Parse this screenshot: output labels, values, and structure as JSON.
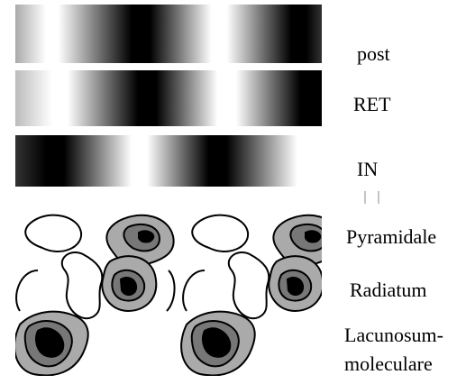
{
  "labels": {
    "post": "post",
    "ret": "RET",
    "in": "IN",
    "pyramidale": "Pyramidale",
    "radiatum": "Radiatum",
    "lacunosum": [
      "Lacunosum-",
      "moleculare"
    ]
  }
}
